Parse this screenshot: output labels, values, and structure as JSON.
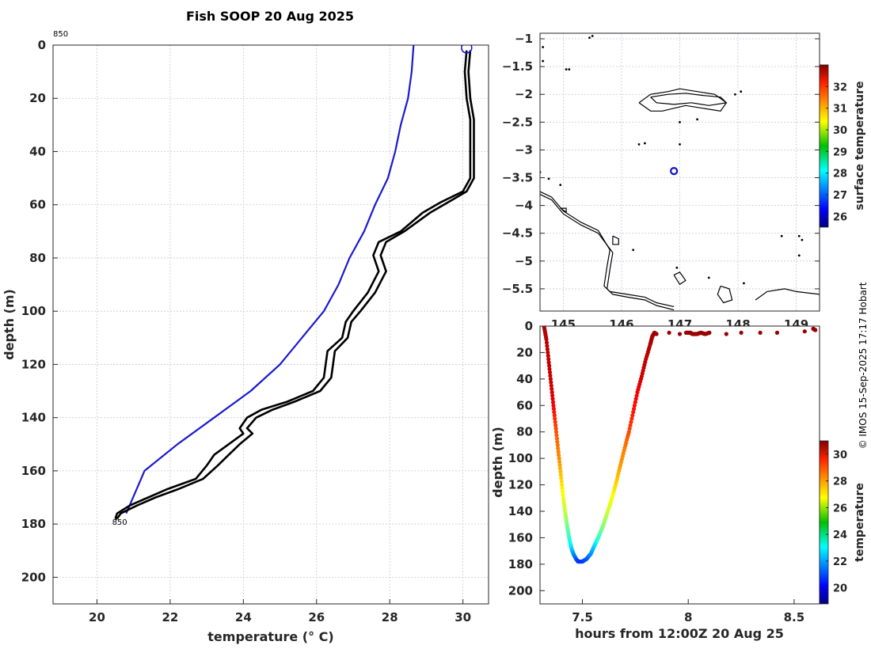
{
  "figure": {
    "title": "Fish SOOP 20 Aug 2025",
    "credit": "© IMOS 15-Sep-2025 17:17 Hobart"
  },
  "chart_data": [
    {
      "id": "profile",
      "type": "line",
      "title": "Fish SOOP 20 Aug 2025",
      "xlabel": "temperature (° C)",
      "ylabel": "depth (m)",
      "xlim": [
        18.8,
        30.7
      ],
      "ylim": [
        210,
        0
      ],
      "xticks": [
        20,
        22,
        24,
        26,
        28,
        30
      ],
      "yticks": [
        0,
        20,
        40,
        60,
        80,
        100,
        120,
        140,
        160,
        180,
        200
      ],
      "grid": true,
      "annotations": [
        {
          "text": "850",
          "position": "top-left-corner"
        },
        {
          "text": "850",
          "x": 20.5,
          "y": 179
        }
      ],
      "marker": {
        "type": "circle",
        "x": 30.1,
        "y": 1,
        "color": "#1010d0"
      },
      "series": [
        {
          "name": "climatology",
          "color": "#1a1ad0",
          "x": [
            28.65,
            28.6,
            28.5,
            28.3,
            28.15,
            27.95,
            27.6,
            27.3,
            26.9,
            26.6,
            26.2,
            25.6,
            25.0,
            24.2,
            23.2,
            22.2,
            21.3,
            20.8
          ],
          "y": [
            0,
            10,
            20,
            30,
            40,
            50,
            60,
            70,
            80,
            90,
            100,
            110,
            120,
            130,
            140,
            150,
            160,
            176
          ]
        },
        {
          "name": "cast-down",
          "color": "#000000",
          "x": [
            30.1,
            30.05,
            30.1,
            30.2,
            30.2,
            30.2,
            30.0,
            29.4,
            28.9,
            28.3,
            27.7,
            27.55,
            27.7,
            27.4,
            27.0,
            26.8,
            26.7,
            26.3,
            26.2,
            25.9,
            25.2,
            24.5,
            24.1,
            23.9,
            24.0,
            23.6,
            23.2,
            23.0,
            22.7,
            21.9,
            21.4,
            20.9,
            20.55,
            20.5
          ],
          "y": [
            2,
            10,
            20,
            28,
            40,
            50,
            55,
            59,
            63,
            70,
            74,
            79,
            85,
            93,
            100,
            104,
            110,
            115,
            125,
            130,
            134,
            137,
            140,
            144,
            146,
            150,
            154,
            158,
            163,
            167,
            170,
            173,
            176,
            178
          ]
        },
        {
          "name": "cast-up",
          "color": "#000000",
          "x": [
            30.2,
            30.15,
            30.2,
            30.3,
            30.3,
            30.3,
            30.1,
            29.6,
            29.1,
            28.4,
            27.9,
            27.75,
            27.9,
            27.6,
            27.2,
            26.95,
            26.85,
            26.5,
            26.4,
            26.1,
            25.4,
            24.8,
            24.35,
            24.1,
            24.25,
            23.9,
            23.6,
            23.3,
            22.9,
            22.2,
            21.6,
            21.1,
            20.65,
            20.55
          ],
          "y": [
            2,
            10,
            20,
            28,
            40,
            50,
            55,
            59,
            63,
            70,
            74,
            79,
            85,
            93,
            100,
            104,
            110,
            115,
            125,
            130,
            134,
            137,
            140,
            144,
            146,
            150,
            154,
            158,
            163,
            167,
            170,
            173,
            176,
            178
          ]
        }
      ]
    },
    {
      "id": "map",
      "type": "scatter",
      "xlabel": "",
      "ylabel": "",
      "xlim": [
        144.6,
        149.4
      ],
      "ylim": [
        -5.9,
        -0.9
      ],
      "xticks": [
        145,
        146,
        147,
        148,
        149
      ],
      "xtick_labels": [
        "145",
        "146",
        "147",
        "148",
        "149"
      ],
      "yticks": [
        -1,
        -1.5,
        -2,
        -2.5,
        -3,
        -3.5,
        -4,
        -4.5,
        -5,
        -5.5
      ],
      "grid": true,
      "colorbar": {
        "label": "surface temperature",
        "range": [
          25.5,
          33.0
        ],
        "ticks": [
          26,
          27,
          28,
          29,
          30,
          31,
          32
        ]
      },
      "station": {
        "lon": 146.9,
        "lat": -3.38,
        "color": "#1010d0"
      },
      "coastlines": [
        {
          "lon": [
            144.6,
            144.8,
            145.0,
            145.3,
            145.6,
            145.8,
            145.75,
            145.7,
            145.8,
            146.1,
            146.4,
            146.6,
            146.9
          ],
          "lat": [
            -3.75,
            -3.85,
            -4.1,
            -4.3,
            -4.45,
            -4.8,
            -5.1,
            -5.45,
            -5.55,
            -5.6,
            -5.65,
            -5.75,
            -5.82
          ]
        },
        {
          "lon": [
            144.6,
            144.8,
            145.0,
            145.3,
            145.6,
            145.85,
            145.8,
            145.75,
            145.85,
            146.1,
            146.4,
            146.6,
            146.9
          ],
          "lat": [
            -3.8,
            -3.9,
            -4.15,
            -4.35,
            -4.5,
            -4.85,
            -5.15,
            -5.5,
            -5.6,
            -5.65,
            -5.7,
            -5.8,
            -5.88
          ]
        },
        {
          "lon": [
            146.3,
            146.5,
            146.8,
            147.0,
            147.3,
            147.6,
            147.8,
            147.7,
            147.4,
            147.1,
            146.9,
            146.7,
            146.5,
            146.3
          ],
          "lat": [
            -2.15,
            -2.0,
            -1.95,
            -1.9,
            -1.95,
            -2.0,
            -2.15,
            -2.3,
            -2.25,
            -2.2,
            -2.25,
            -2.3,
            -2.3,
            -2.15
          ]
        },
        {
          "lon": [
            146.5,
            146.8,
            147.1,
            147.4,
            147.7,
            147.8,
            147.5,
            147.2,
            146.9,
            146.6,
            146.5
          ],
          "lat": [
            -2.05,
            -2.0,
            -1.98,
            -2.02,
            -2.05,
            -2.15,
            -2.2,
            -2.15,
            -2.18,
            -2.15,
            -2.05
          ]
        },
        {
          "lon": [
            148.3,
            148.5,
            148.8,
            149.0,
            149.4
          ],
          "lat": [
            -5.7,
            -5.55,
            -5.5,
            -5.55,
            -5.6
          ]
        },
        {
          "lon": [
            147.7,
            147.85,
            147.9,
            147.75,
            147.65,
            147.7
          ],
          "lat": [
            -5.45,
            -5.5,
            -5.7,
            -5.75,
            -5.6,
            -5.45
          ]
        },
        {
          "lon": [
            146.9,
            147.0,
            147.1,
            147.0,
            146.9
          ],
          "lat": [
            -5.25,
            -5.2,
            -5.35,
            -5.42,
            -5.25
          ]
        },
        {
          "lon": [
            145.85,
            145.95,
            145.95,
            145.85,
            145.85
          ],
          "lat": [
            -4.55,
            -4.6,
            -4.7,
            -4.7,
            -4.55
          ]
        },
        {
          "lon": [
            144.95,
            145.05,
            145.05,
            144.95
          ],
          "lat": [
            -4.05,
            -4.05,
            -4.12,
            -4.05
          ]
        }
      ],
      "islands": [
        {
          "lon": 145.5,
          "lat": -0.95
        },
        {
          "lon": 145.45,
          "lat": -0.98
        },
        {
          "lon": 144.65,
          "lat": -1.15
        },
        {
          "lon": 144.65,
          "lat": -1.4
        },
        {
          "lon": 145.05,
          "lat": -1.55
        },
        {
          "lon": 145.1,
          "lat": -1.55
        },
        {
          "lon": 148.05,
          "lat": -1.95
        },
        {
          "lon": 147.95,
          "lat": -2.0
        },
        {
          "lon": 146.3,
          "lat": -2.9
        },
        {
          "lon": 146.4,
          "lat": -2.88
        },
        {
          "lon": 147.0,
          "lat": -2.9
        },
        {
          "lon": 144.6,
          "lat": -3.4
        },
        {
          "lon": 144.75,
          "lat": -3.52
        },
        {
          "lon": 144.95,
          "lat": -3.63
        },
        {
          "lon": 146.2,
          "lat": -4.8
        },
        {
          "lon": 146.95,
          "lat": -5.12
        },
        {
          "lon": 147.5,
          "lat": -5.3
        },
        {
          "lon": 148.1,
          "lat": -5.4
        },
        {
          "lon": 148.75,
          "lat": -4.55
        },
        {
          "lon": 149.05,
          "lat": -4.55
        },
        {
          "lon": 149.1,
          "lat": -4.62
        },
        {
          "lon": 149.05,
          "lat": -4.9
        },
        {
          "lon": 147.0,
          "lat": -2.5
        },
        {
          "lon": 147.3,
          "lat": -2.45
        }
      ]
    },
    {
      "id": "time-depth",
      "type": "scatter",
      "xlabel": "hours from 12:00Z 20 Aug 25",
      "ylabel": "depth (m)",
      "xlim": [
        7.3,
        8.62
      ],
      "ylim": [
        210,
        0
      ],
      "xticks": [
        7.5,
        8,
        8.5
      ],
      "yticks": [
        0,
        20,
        40,
        60,
        80,
        100,
        120,
        140,
        160,
        180,
        200
      ],
      "grid": false,
      "colorbar": {
        "label": "temperature",
        "range": [
          18.8,
          31.0
        ],
        "ticks": [
          20,
          22,
          24,
          26,
          28,
          30
        ]
      },
      "points": {
        "t": [
          7.32,
          7.33,
          7.34,
          7.35,
          7.36,
          7.37,
          7.38,
          7.39,
          7.4,
          7.41,
          7.42,
          7.43,
          7.44,
          7.45,
          7.46,
          7.47,
          7.48,
          7.5,
          7.52,
          7.54,
          7.56,
          7.58,
          7.6,
          7.62,
          7.64,
          7.66,
          7.68,
          7.7,
          7.72,
          7.74,
          7.76,
          7.78,
          7.8,
          7.82,
          7.83,
          7.84,
          7.85,
          7.91,
          7.96,
          7.99,
          8.01,
          8.02,
          8.04,
          8.06,
          8.08,
          8.1,
          8.18,
          8.25,
          8.34,
          8.42,
          8.55,
          8.59,
          8.6
        ],
        "depth": [
          1,
          10,
          25,
          40,
          55,
          70,
          85,
          100,
          115,
          130,
          142,
          153,
          162,
          169,
          173,
          176,
          178,
          178,
          176,
          172,
          165,
          158,
          150,
          140,
          130,
          118,
          105,
          92,
          80,
          65,
          50,
          38,
          25,
          14,
          8,
          5,
          6,
          5,
          6,
          5,
          5,
          6,
          6,
          5,
          6,
          5,
          6,
          5,
          5,
          5,
          4,
          2,
          3
        ],
        "temp": [
          30.4,
          30.3,
          30.2,
          30.1,
          29.8,
          29.0,
          28.3,
          27.8,
          27.0,
          26.2,
          25.6,
          24.6,
          23.8,
          22.8,
          22.0,
          21.5,
          21.0,
          21.0,
          21.3,
          22.0,
          23.0,
          24.2,
          25.0,
          25.8,
          26.3,
          27.0,
          27.6,
          28.0,
          28.6,
          29.2,
          29.6,
          30.0,
          30.2,
          30.4,
          30.5,
          30.6,
          30.6,
          30.7,
          30.7,
          30.7,
          30.7,
          30.7,
          30.7,
          30.7,
          30.7,
          30.7,
          30.7,
          30.7,
          30.7,
          30.7,
          30.7,
          30.7,
          30.7
        ]
      }
    }
  ]
}
